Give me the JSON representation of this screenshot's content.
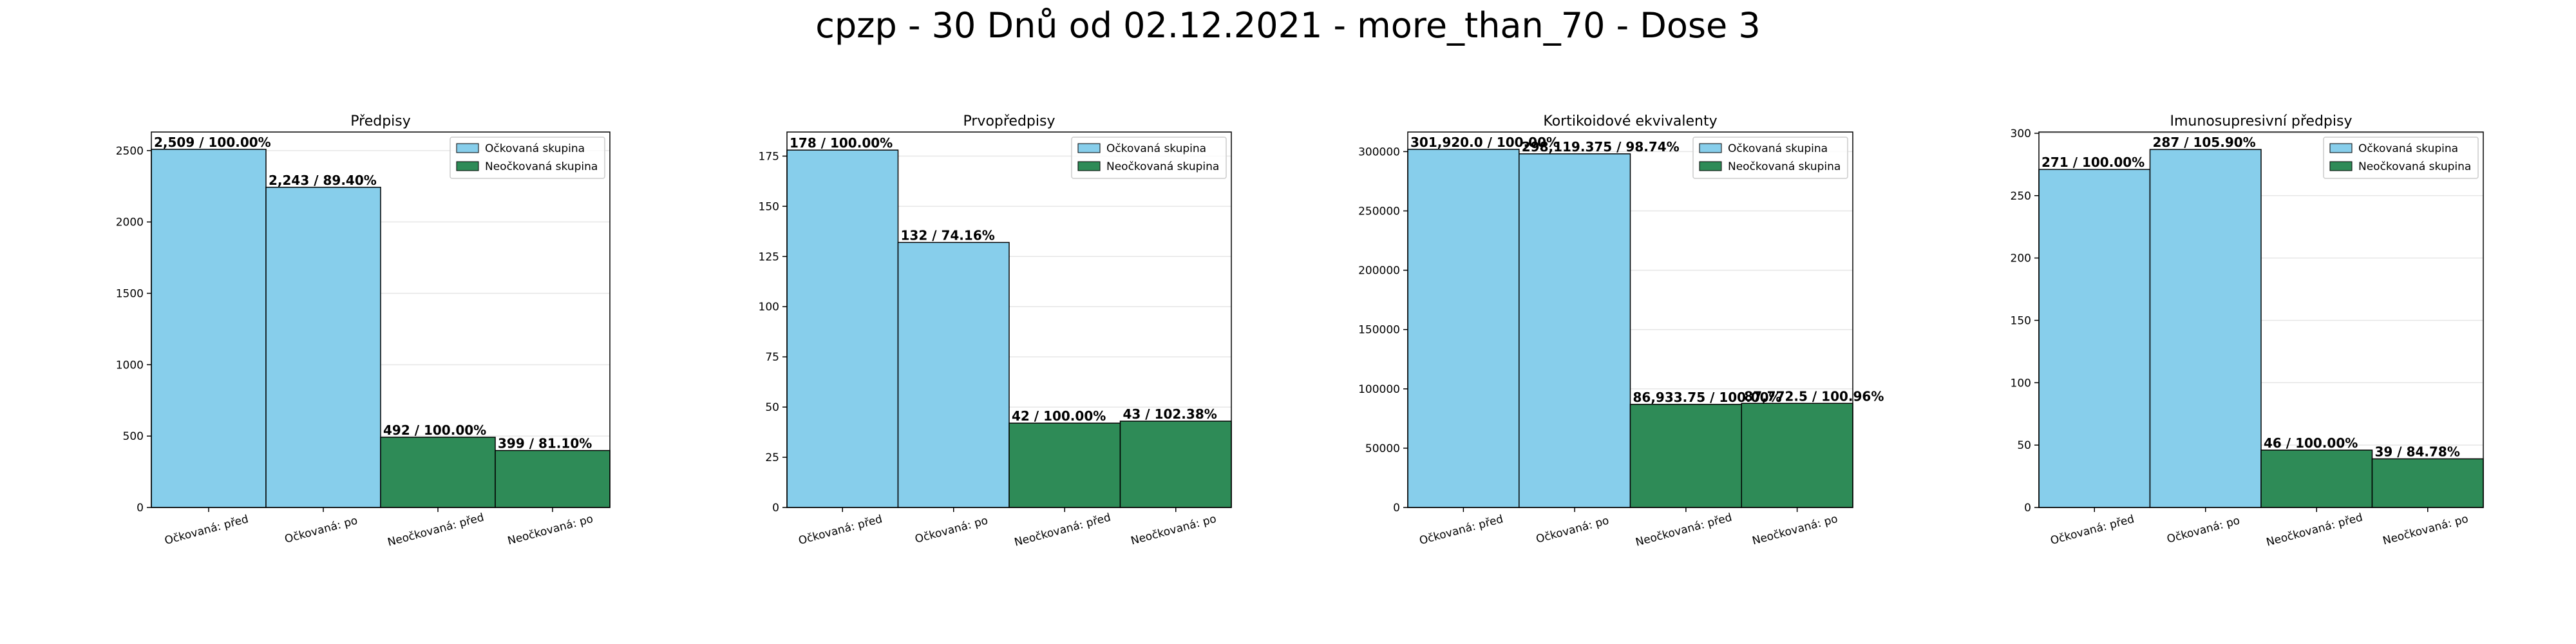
{
  "figure_title": "cpzp - 30 Dnů od 02.12.2021 - more_than_70 - Dose 3",
  "colors": {
    "vaccinated": "#87ceeb",
    "unvaccinated": "#2e8b57",
    "edge": "#000000",
    "grid": "#e6e6e6"
  },
  "chart_data": [
    {
      "type": "bar",
      "title": "Předpisy",
      "categories": [
        "Očkovaná: před",
        "Očkovaná: po",
        "Neočkovaná: před",
        "Neočkovaná: po"
      ],
      "values": [
        2509,
        2243,
        492,
        399
      ],
      "bar_labels": [
        "2,509 / 100.00%",
        "2,243 / 89.40%",
        "492 / 100.00%",
        "399 / 81.10%"
      ],
      "groups": [
        "vaccinated",
        "vaccinated",
        "unvaccinated",
        "unvaccinated"
      ],
      "ylim": [
        0,
        2630
      ],
      "yticks": [
        0,
        500,
        1000,
        1500,
        2000,
        2500
      ],
      "ytick_labels": [
        "0",
        "500",
        "1000",
        "1500",
        "2000",
        "2500"
      ],
      "legend": [
        "Očkovaná skupina",
        "Neočkovaná skupina"
      ],
      "legend_position": "top-right",
      "grid": true
    },
    {
      "type": "bar",
      "title": "Prvopředpisy",
      "categories": [
        "Očkovaná: před",
        "Očkovaná: po",
        "Neočkovaná: před",
        "Neočkovaná: po"
      ],
      "values": [
        178,
        132,
        42,
        43
      ],
      "bar_labels": [
        "178 / 100.00%",
        "132 / 74.16%",
        "42 / 100.00%",
        "43 / 102.38%"
      ],
      "groups": [
        "vaccinated",
        "vaccinated",
        "unvaccinated",
        "unvaccinated"
      ],
      "ylim": [
        0,
        187
      ],
      "yticks": [
        0,
        25,
        50,
        75,
        100,
        125,
        150,
        175
      ],
      "ytick_labels": [
        "0",
        "25",
        "50",
        "75",
        "100",
        "125",
        "150",
        "175"
      ],
      "legend": [
        "Očkovaná skupina",
        "Neočkovaná skupina"
      ],
      "legend_position": "top-right",
      "grid": true
    },
    {
      "type": "bar",
      "title": "Kortikoidové ekvivalenty",
      "categories": [
        "Očkovaná: před",
        "Očkovaná: po",
        "Neočkovaná: před",
        "Neočkovaná: po"
      ],
      "values": [
        301920.0,
        298119.375,
        86933.75,
        87772.5
      ],
      "bar_labels": [
        "301,920.0 / 100.00%",
        "298,119.375 / 98.74%",
        "86,933.75 / 100.00%",
        "87,772.5 / 100.96%"
      ],
      "groups": [
        "vaccinated",
        "vaccinated",
        "unvaccinated",
        "unvaccinated"
      ],
      "ylim": [
        0,
        316500
      ],
      "yticks": [
        0,
        50000,
        100000,
        150000,
        200000,
        250000,
        300000
      ],
      "ytick_labels": [
        "0",
        "50000",
        "100000",
        "150000",
        "200000",
        "250000",
        "300000"
      ],
      "legend": [
        "Očkovaná skupina",
        "Neočkovaná skupina"
      ],
      "legend_position": "top-right",
      "grid": true
    },
    {
      "type": "bar",
      "title": "Imunosupresivní předpisy",
      "categories": [
        "Očkovaná: před",
        "Očkovaná: po",
        "Neočkovaná: před",
        "Neočkovaná: po"
      ],
      "values": [
        271,
        287,
        46,
        39
      ],
      "bar_labels": [
        "271 / 100.00%",
        "287 / 105.90%",
        "46 / 100.00%",
        "39 / 84.78%"
      ],
      "groups": [
        "vaccinated",
        "vaccinated",
        "unvaccinated",
        "unvaccinated"
      ],
      "ylim": [
        0,
        301
      ],
      "yticks": [
        0,
        50,
        100,
        150,
        200,
        250,
        300
      ],
      "ytick_labels": [
        "0",
        "50",
        "100",
        "150",
        "200",
        "250",
        "300"
      ],
      "legend": [
        "Očkovaná skupina",
        "Neočkovaná skupina"
      ],
      "legend_position": "top-right",
      "grid": true
    }
  ]
}
